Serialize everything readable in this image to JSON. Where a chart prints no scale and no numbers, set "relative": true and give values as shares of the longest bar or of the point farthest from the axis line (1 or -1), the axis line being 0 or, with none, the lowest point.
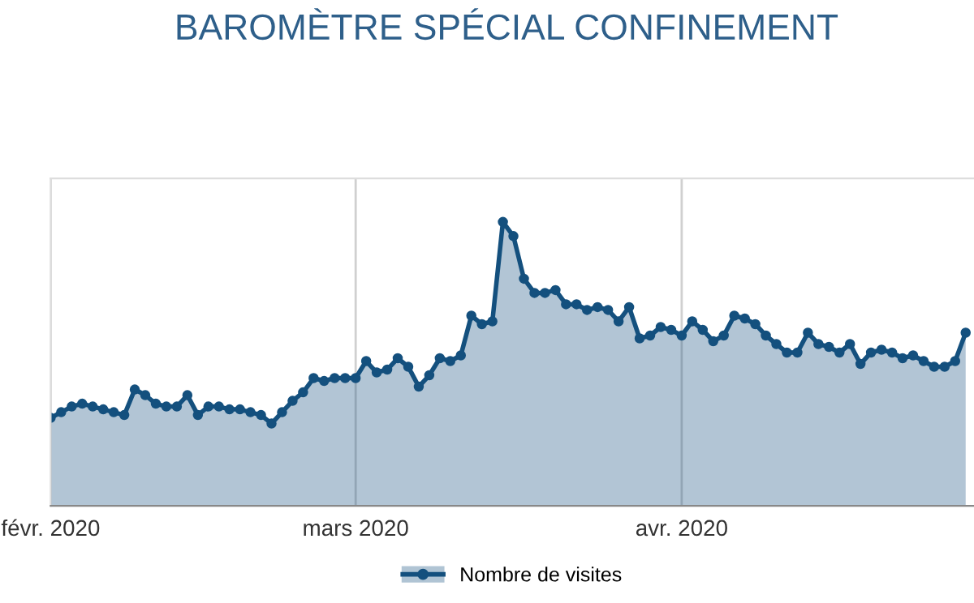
{
  "chart_data": {
    "type": "area",
    "title": "BAROMÈTRE SPÉCIAL CONFINEMENT",
    "relative": true,
    "x": [
      "2020-02-01",
      "2020-02-02",
      "2020-02-03",
      "2020-02-04",
      "2020-02-05",
      "2020-02-06",
      "2020-02-07",
      "2020-02-08",
      "2020-02-09",
      "2020-02-10",
      "2020-02-11",
      "2020-02-12",
      "2020-02-13",
      "2020-02-14",
      "2020-02-15",
      "2020-02-16",
      "2020-02-17",
      "2020-02-18",
      "2020-02-19",
      "2020-02-20",
      "2020-02-21",
      "2020-02-22",
      "2020-02-23",
      "2020-02-24",
      "2020-02-25",
      "2020-02-26",
      "2020-02-27",
      "2020-02-28",
      "2020-02-29",
      "2020-03-01",
      "2020-03-02",
      "2020-03-03",
      "2020-03-04",
      "2020-03-05",
      "2020-03-06",
      "2020-03-07",
      "2020-03-08",
      "2020-03-09",
      "2020-03-10",
      "2020-03-11",
      "2020-03-12",
      "2020-03-13",
      "2020-03-14",
      "2020-03-15",
      "2020-03-16",
      "2020-03-17",
      "2020-03-18",
      "2020-03-19",
      "2020-03-20",
      "2020-03-21",
      "2020-03-22",
      "2020-03-23",
      "2020-03-24",
      "2020-03-25",
      "2020-03-26",
      "2020-03-27",
      "2020-03-28",
      "2020-03-29",
      "2020-03-30",
      "2020-03-31",
      "2020-04-01",
      "2020-04-02",
      "2020-04-03",
      "2020-04-04",
      "2020-04-05",
      "2020-04-06",
      "2020-04-07",
      "2020-04-08",
      "2020-04-09",
      "2020-04-10",
      "2020-04-11",
      "2020-04-12",
      "2020-04-13",
      "2020-04-14",
      "2020-04-15",
      "2020-04-16",
      "2020-04-17",
      "2020-04-18",
      "2020-04-19",
      "2020-04-20",
      "2020-04-21",
      "2020-04-22",
      "2020-04-23",
      "2020-04-24",
      "2020-04-25",
      "2020-04-26",
      "2020-04-27",
      "2020-04-28"
    ],
    "series": [
      {
        "name": "Nombre de visites",
        "color": "#14507e",
        "values": [
          0.31,
          0.33,
          0.35,
          0.36,
          0.35,
          0.34,
          0.33,
          0.32,
          0.41,
          0.39,
          0.36,
          0.35,
          0.35,
          0.39,
          0.32,
          0.35,
          0.35,
          0.34,
          0.34,
          0.33,
          0.32,
          0.29,
          0.33,
          0.37,
          0.4,
          0.45,
          0.44,
          0.45,
          0.45,
          0.45,
          0.51,
          0.47,
          0.48,
          0.52,
          0.49,
          0.42,
          0.46,
          0.52,
          0.51,
          0.53,
          0.67,
          0.64,
          0.65,
          1,
          0.95,
          0.8,
          0.75,
          0.75,
          0.76,
          0.71,
          0.71,
          0.69,
          0.7,
          0.69,
          0.65,
          0.7,
          0.59,
          0.6,
          0.63,
          0.62,
          0.6,
          0.65,
          0.62,
          0.58,
          0.6,
          0.67,
          0.66,
          0.64,
          0.6,
          0.57,
          0.54,
          0.54,
          0.61,
          0.57,
          0.56,
          0.54,
          0.57,
          0.5,
          0.54,
          0.55,
          0.54,
          0.52,
          0.53,
          0.51,
          0.49,
          0.49,
          0.51,
          0.61
        ]
      }
    ],
    "xlim": [
      "2020-02-01",
      "2020-04-28T19:00"
    ],
    "xticks": [
      {
        "value": "2020-02-01",
        "label": "févr. 2020"
      },
      {
        "value": "2020-03-01",
        "label": "mars 2020"
      },
      {
        "value": "2020-04-01",
        "label": "avr. 2020"
      }
    ],
    "grid": "x",
    "legend": "bottom",
    "marker": "circle",
    "line_style": "solid"
  }
}
